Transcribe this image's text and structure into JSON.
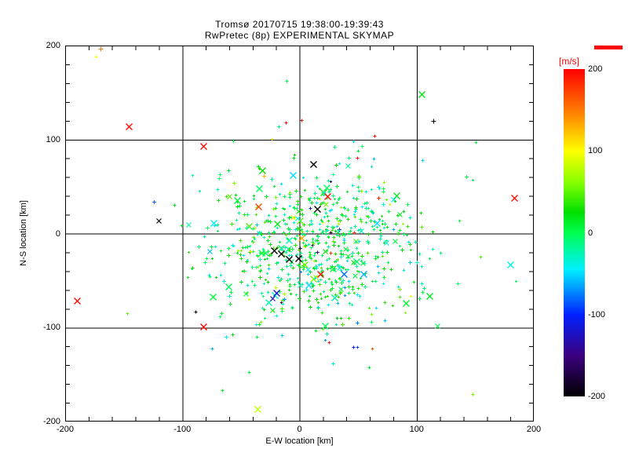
{
  "chart_data": {
    "type": "scatter",
    "title": "Tromsø 20170715 19:38:00-19:39:43",
    "subtitle": "RwPretec (8p) EXPERIMENTAL SKYMAP",
    "xlabel": "E-W location [km]",
    "ylabel": "N-S location [km]",
    "xlim": [
      -200,
      200
    ],
    "ylim": [
      -200,
      200
    ],
    "xticks": [
      -200,
      -100,
      0,
      100,
      200
    ],
    "yticks": [
      200,
      100,
      0,
      -100,
      -200
    ],
    "minor_tick_step": 20,
    "grid_values": [
      -100,
      0,
      100
    ],
    "grid": true,
    "frame_color": "#000000",
    "colorbar": {
      "label": "[m/s]",
      "label_color": "#FF0000",
      "ticks": [
        200,
        100,
        0,
        -100,
        -200
      ],
      "range": [
        -200,
        200
      ],
      "stops": [
        [
          -200,
          "#000000"
        ],
        [
          -150,
          "#3C0080"
        ],
        [
          -100,
          "#0020FF"
        ],
        [
          -45,
          "#00F0FF"
        ],
        [
          0,
          "#00FF50"
        ],
        [
          25,
          "#00E000"
        ],
        [
          60,
          "#80FF00"
        ],
        [
          100,
          "#FFFF00"
        ],
        [
          150,
          "#FF7800"
        ],
        [
          200,
          "#FF0000"
        ]
      ]
    },
    "cluster": {
      "comment": "dense core of small plus markers, mostly green/teal velocities near 0 m/s",
      "count": 680,
      "seed": 20170715,
      "center": [
        9,
        -11
      ],
      "sigma": [
        44,
        39
      ],
      "v_mean": 2,
      "v_sigma": 30,
      "v_outlier_prob": 0.045,
      "x_marker_prob": 0.07
    },
    "halo": {
      "comment": "sparse faint points surrounding the core",
      "count": 48,
      "seed": 1938,
      "center": [
        5,
        -5
      ],
      "sigma": [
        85,
        80
      ],
      "v_mean": 0,
      "v_sigma": 35,
      "v_outlier_prob": 0.12,
      "x_marker_prob": 0.04
    },
    "outliers": [
      [
        -170,
        197,
        150,
        "p",
        3
      ],
      [
        -174,
        188,
        100,
        "p",
        2
      ],
      [
        -146,
        114,
        195,
        "x",
        4
      ],
      [
        -82,
        93,
        195,
        "x",
        4
      ],
      [
        104,
        148,
        20,
        "x",
        4
      ],
      [
        114,
        120,
        -200,
        "p",
        3
      ],
      [
        183,
        38,
        195,
        "x",
        4
      ],
      [
        -120,
        14,
        -200,
        "x",
        3
      ],
      [
        -190,
        -71,
        195,
        "x",
        4
      ],
      [
        -82,
        -99,
        195,
        "x",
        4
      ],
      [
        -36,
        -187,
        80,
        "x",
        4
      ],
      [
        -20,
        -63,
        -120,
        "x",
        4
      ],
      [
        -23,
        -69,
        -140,
        "x",
        3
      ],
      [
        12,
        74,
        -200,
        "x",
        4
      ],
      [
        24,
        40,
        195,
        "x",
        4
      ],
      [
        -6,
        62,
        -50,
        "x",
        4
      ],
      [
        91,
        -74,
        10,
        "x",
        4
      ],
      [
        111,
        -66,
        15,
        "x",
        4
      ],
      [
        67,
        -35,
        -60,
        "p",
        2
      ],
      [
        73,
        -92,
        -55,
        "p",
        2
      ],
      [
        64,
        104,
        195,
        "p",
        2
      ],
      [
        46,
        98,
        -50,
        "p",
        2
      ],
      [
        50,
        88,
        10,
        "p",
        2
      ],
      [
        49,
        81,
        195,
        "p",
        2
      ],
      [
        63,
        80,
        -55,
        "p",
        2
      ],
      [
        -12,
        118,
        195,
        "p",
        2
      ],
      [
        2,
        121,
        195,
        "p",
        2
      ],
      [
        -89,
        -83,
        -200,
        "p",
        2
      ],
      [
        -75,
        -122,
        -60,
        "p",
        2
      ],
      [
        -43,
        -147,
        5,
        "p",
        2
      ],
      [
        -66,
        -167,
        10,
        "p",
        2
      ],
      [
        -15,
        -108,
        -55,
        "p",
        2
      ],
      [
        46,
        -121,
        -110,
        "p",
        2
      ],
      [
        59,
        -142,
        10,
        "p",
        2
      ],
      [
        14,
        -103,
        10,
        "p",
        2
      ],
      [
        -35,
        29,
        170,
        "x",
        4
      ],
      [
        -6,
        17,
        100,
        "x",
        3
      ],
      [
        9,
        27,
        -120,
        "p",
        2
      ],
      [
        15,
        26,
        -200,
        "x",
        4
      ],
      [
        -22,
        -18,
        -200,
        "x",
        4
      ],
      [
        -16,
        -21,
        -200,
        "x",
        4
      ],
      [
        -9,
        -27,
        -200,
        "x",
        4
      ],
      [
        -1,
        -26,
        -200,
        "x",
        4
      ],
      [
        18,
        -43,
        195,
        "x",
        4
      ],
      [
        66,
        11,
        -50,
        "x",
        4
      ],
      [
        22,
        -98,
        0,
        "x",
        4
      ],
      [
        8,
        -55,
        -50,
        "x",
        4
      ]
    ]
  },
  "layout_marks": {
    "colorbar_top_mark_color": "#FF0000"
  }
}
